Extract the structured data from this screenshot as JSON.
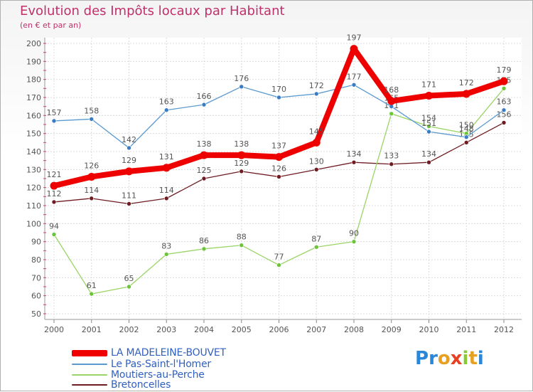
{
  "title": "Evolution des Impôts locaux par Habitant",
  "subtitle": "(en € et par an)",
  "brand": {
    "logo_text": "Proxiti",
    "letter_colors": [
      "#2a86d8",
      "#2a86d8",
      "#e8a020",
      "#e84020",
      "#8ac834",
      "#e8a020",
      "#2a86d8"
    ]
  },
  "chart_data": {
    "type": "line",
    "title": "Evolution des Impôts locaux par Habitant",
    "subtitle": "(en € et par an)",
    "xlabel": "",
    "ylabel": "",
    "x": [
      "2000",
      "2001",
      "2002",
      "2003",
      "2004",
      "2005",
      "2006",
      "2007",
      "2008",
      "2009",
      "2010",
      "2011",
      "2012"
    ],
    "ylim": [
      50,
      200
    ],
    "yticks": [
      50,
      60,
      70,
      80,
      90,
      100,
      110,
      120,
      130,
      140,
      150,
      160,
      170,
      180,
      190,
      200
    ],
    "grid": true,
    "legend_position": "bottom-left",
    "series": [
      {
        "name": "Bretoncelles",
        "color": "#6e1c22",
        "marker_color": "#6e1c22",
        "emphasis": false,
        "values": [
          112,
          114,
          111,
          114,
          125,
          129,
          126,
          130,
          134,
          133,
          134,
          145,
          156
        ],
        "labels": [
          "112",
          "114",
          "111",
          "114",
          "125",
          "129",
          "126",
          "130",
          "134",
          "133",
          "134",
          "145",
          "156"
        ]
      },
      {
        "name": "Moutiers-au-Perche",
        "color": "#9ad466",
        "marker_color": "#6cc43a",
        "emphasis": false,
        "values": [
          94,
          61,
          65,
          83,
          86,
          88,
          77,
          87,
          90,
          161,
          154,
          150,
          175
        ],
        "labels": [
          "94",
          "61",
          "65",
          "83",
          "86",
          "88",
          "77",
          "87",
          "90",
          "161",
          "154",
          "150",
          "175"
        ]
      },
      {
        "name": "Le Pas-Saint-l'Homer",
        "color": "#5a9ad0",
        "marker_color": "#3a7cc4",
        "emphasis": false,
        "values": [
          157,
          158,
          142,
          163,
          166,
          176,
          170,
          172,
          177,
          165,
          151,
          148,
          163
        ],
        "labels": [
          "157",
          "158",
          "142",
          "163",
          "166",
          "176",
          "170",
          "172",
          "177",
          "165",
          "151",
          "148",
          "163"
        ]
      },
      {
        "name": "LA MADELEINE-BOUVET",
        "color": "#ee0000",
        "marker_color": "#ee0000",
        "emphasis": true,
        "values": [
          121,
          126,
          129,
          131,
          138,
          138,
          137,
          145,
          197,
          168,
          171,
          172,
          179
        ],
        "labels": [
          "121",
          "126",
          "129",
          "131",
          "138",
          "138",
          "137",
          "145",
          "197",
          "168",
          "171",
          "172",
          "179"
        ]
      }
    ]
  },
  "legend": {
    "items": [
      {
        "label": "LA MADELEINE-BOUVET",
        "color": "#ee0000"
      },
      {
        "label": "Le Pas-Saint-l'Homer",
        "color": "#5a9ad0"
      },
      {
        "label": "Moutiers-au-Perche",
        "color": "#9ad466"
      },
      {
        "label": "Bretoncelles",
        "color": "#6e1c22"
      }
    ]
  }
}
